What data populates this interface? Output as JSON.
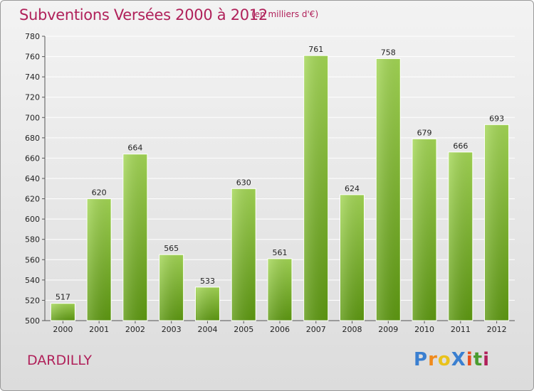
{
  "header": {
    "title": "Subventions Versées 2000 à 2012",
    "subtitle": "(en milliers d'€)"
  },
  "footer": {
    "place": "DARDILLY",
    "logo": "ProXiti"
  },
  "colors": {
    "title": "#b0215a",
    "bar_top": "#9fd34f",
    "bar_bottom": "#5f9a14",
    "grid": "#ffffff"
  },
  "chart_data": {
    "type": "bar",
    "categories": [
      "2000",
      "2001",
      "2002",
      "2003",
      "2004",
      "2005",
      "2006",
      "2007",
      "2008",
      "2009",
      "2010",
      "2011",
      "2012"
    ],
    "values": [
      517,
      620,
      664,
      565,
      533,
      630,
      561,
      761,
      624,
      758,
      679,
      666,
      693
    ],
    "ylim": [
      500,
      780
    ],
    "yticks": [
      500,
      520,
      540,
      560,
      580,
      600,
      620,
      640,
      660,
      680,
      700,
      720,
      740,
      760,
      780
    ],
    "grid": true
  }
}
